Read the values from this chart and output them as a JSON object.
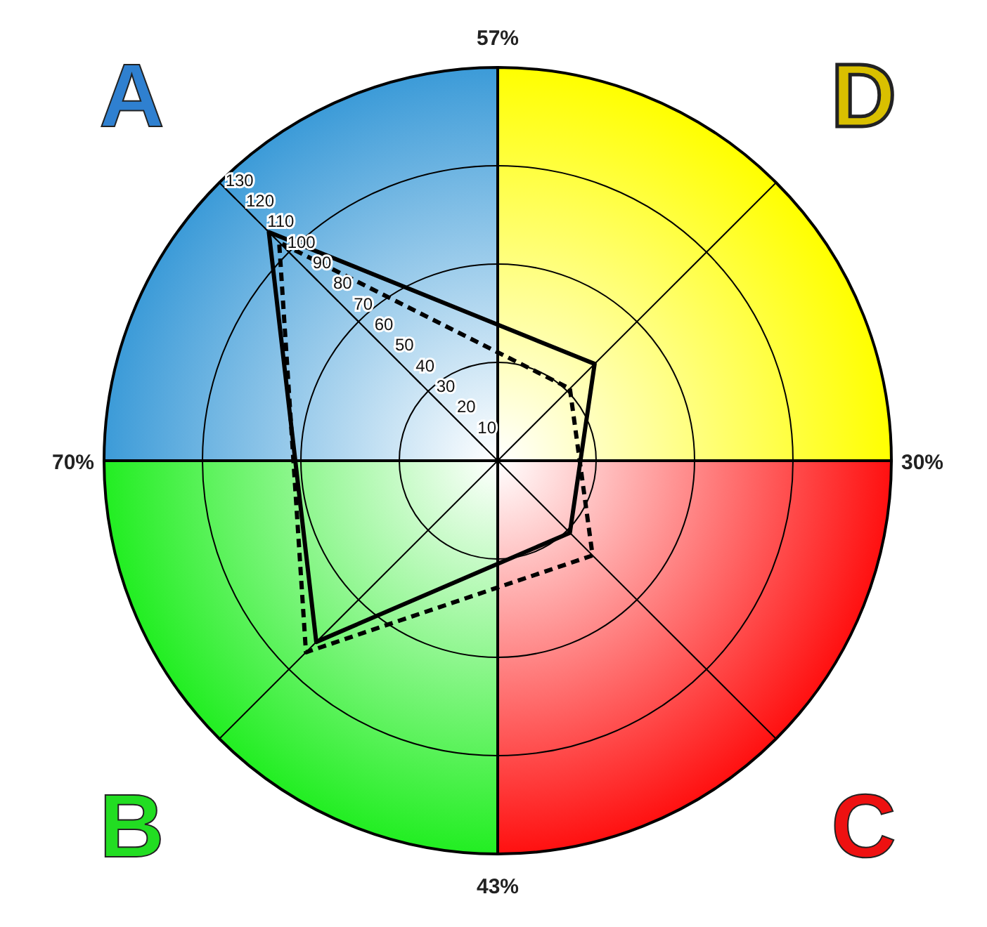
{
  "chart_data": {
    "type": "radar",
    "categories": [
      "D",
      "C",
      "B",
      "A"
    ],
    "series": [
      {
        "color": "#000000",
        "values": [
          47,
          35,
          88,
          111
        ],
        "line_style": "solid"
      },
      {
        "color": "#000000",
        "values": [
          35,
          46,
          93,
          106
        ],
        "line_style": "dashed"
      }
    ],
    "ylim": [
      0,
      135
    ],
    "yticks": [
      10,
      20,
      30,
      40,
      50,
      60,
      70,
      80,
      90,
      100,
      110,
      120,
      130
    ],
    "grid": true,
    "marker": "none",
    "legend": false,
    "annotations": [
      "57%",
      "30%",
      "43%",
      "70%"
    ]
  }
}
